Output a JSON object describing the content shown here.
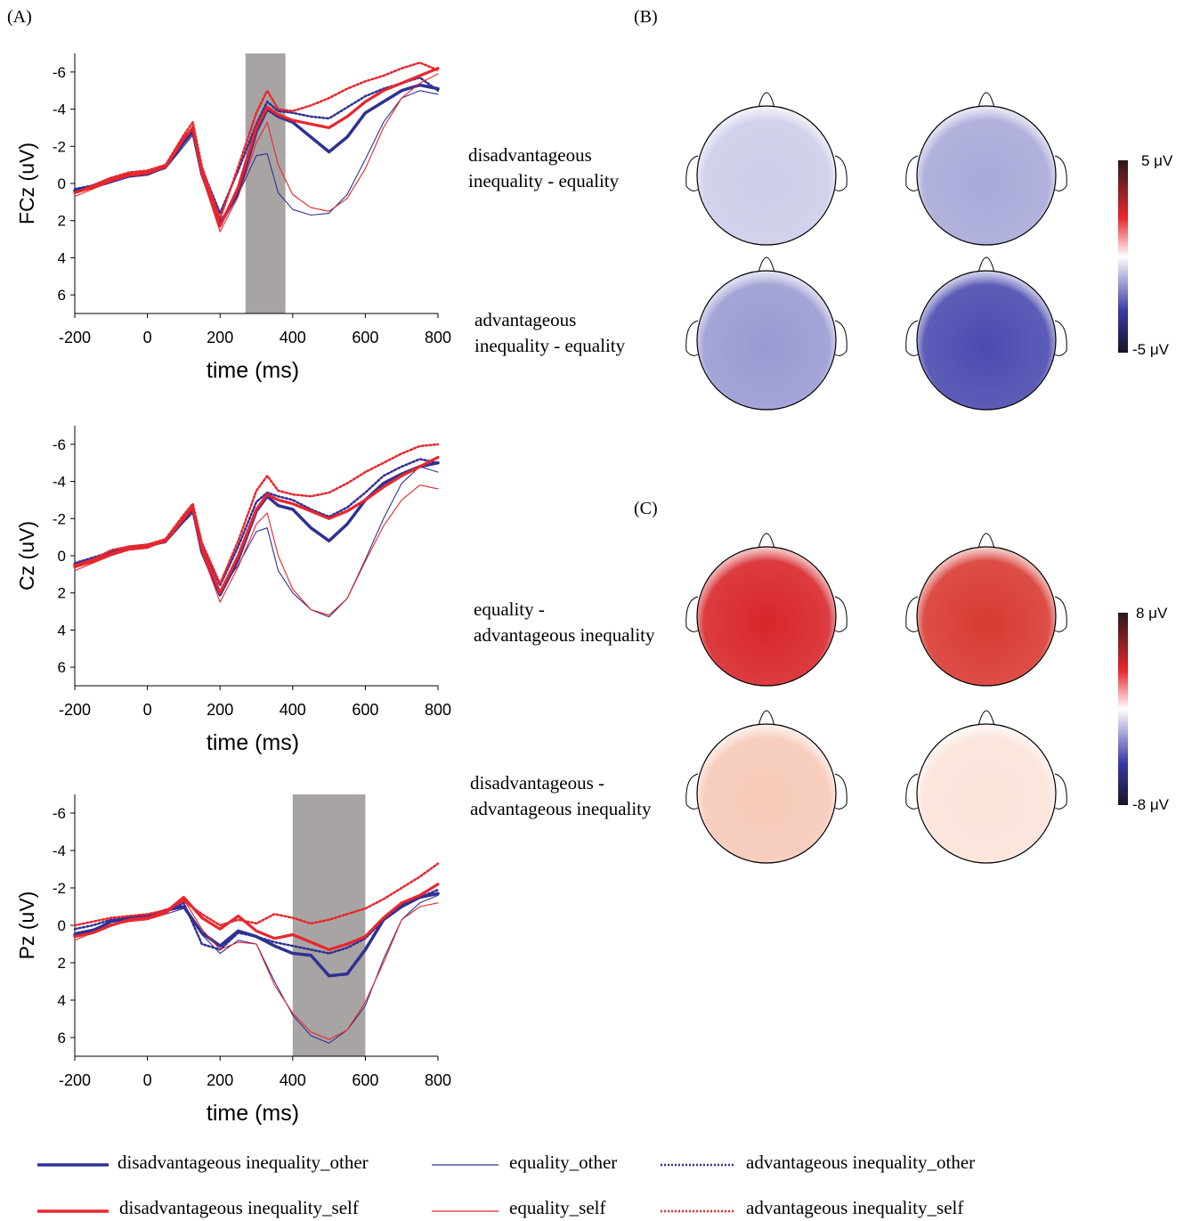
{
  "panel_labels": {
    "a": "(A)",
    "b": "(B)",
    "c": "(C)"
  },
  "legend": [
    {
      "label": "disadvantageous inequality_other",
      "color": "#2e3192",
      "style": "thick"
    },
    {
      "label": "equality_other",
      "color": "#2e3192",
      "style": "thin"
    },
    {
      "label": "advantageous inequality_other",
      "color": "#2e3192",
      "style": "dotted"
    },
    {
      "label": "disadvantageous inequality_self",
      "color": "#e8262d",
      "style": "thick"
    },
    {
      "label": "equality_self",
      "color": "#e8262d",
      "style": "thin"
    },
    {
      "label": "advantageous inequality_self",
      "color": "#e8262d",
      "style": "dotted"
    }
  ],
  "topo_b": {
    "rows": [
      {
        "label_line1": "disadvantageous",
        "label_line2": "inequality - equality",
        "maps": [
          "#cdcdea",
          "#a9a9d9"
        ]
      },
      {
        "label_line1": "advantageous",
        "label_line2": "inequality - equality",
        "maps": [
          "#9a9ad3",
          "#4b4bb0"
        ]
      }
    ],
    "colorbar_max": "5 μV",
    "colorbar_min": "-5 μV"
  },
  "topo_c": {
    "rows": [
      {
        "label_line1": "equality -",
        "label_line2": "advantageous inequality",
        "maps": [
          "#d8262a",
          "#d83a32"
        ]
      },
      {
        "label_line1": "disadvantageous -",
        "label_line2": "advantageous inequality",
        "maps": [
          "#f6c9b8",
          "#fbe3d9"
        ]
      }
    ],
    "colorbar_max": "8 μV",
    "colorbar_min": "-8 μV"
  },
  "chart_data": [
    {
      "type": "line",
      "ylabel": "FCz (uV)",
      "xlabel": "time (ms)",
      "xlim": [
        -200,
        800
      ],
      "ylim": [
        7,
        -7
      ],
      "xticks": [
        -200,
        0,
        200,
        400,
        600,
        800
      ],
      "yticks": [
        -6,
        -4,
        -2,
        0,
        2,
        4,
        6
      ],
      "shaded_window": [
        270,
        380
      ],
      "x": [
        -200,
        -150,
        -100,
        -50,
        0,
        50,
        100,
        125,
        150,
        200,
        250,
        300,
        330,
        360,
        400,
        450,
        500,
        550,
        600,
        650,
        700,
        750,
        800
      ],
      "series": [
        {
          "values": [
            0.4,
            0.2,
            -0.1,
            -0.4,
            -0.5,
            -0.9,
            -2.2,
            -2.8,
            -0.5,
            2.2,
            0.5,
            -2.8,
            -4.0,
            -3.6,
            -3.3,
            -2.5,
            -1.7,
            -2.5,
            -3.8,
            -4.4,
            -5.0,
            -5.3,
            -5.1
          ]
        },
        {
          "values": [
            0.3,
            0.1,
            -0.2,
            -0.4,
            -0.5,
            -0.8,
            -2.0,
            -2.6,
            -0.4,
            2.0,
            0.6,
            -1.5,
            -1.6,
            0.5,
            1.4,
            1.7,
            1.6,
            0.6,
            -1.3,
            -3.3,
            -4.6,
            -5.0,
            -4.8
          ]
        },
        {
          "values": [
            0.3,
            0.1,
            -0.3,
            -0.5,
            -0.6,
            -0.9,
            -2.3,
            -2.9,
            -0.8,
            1.6,
            -0.7,
            -3.2,
            -4.4,
            -3.9,
            -3.8,
            -3.6,
            -3.5,
            -4.1,
            -4.7,
            -5.1,
            -5.4,
            -5.7,
            -5.0
          ]
        },
        {
          "values": [
            0.5,
            0.2,
            -0.2,
            -0.5,
            -0.6,
            -0.9,
            -2.4,
            -3.0,
            -0.6,
            2.3,
            0.2,
            -3.0,
            -4.1,
            -3.7,
            -3.4,
            -3.2,
            -3.0,
            -3.6,
            -4.4,
            -5.0,
            -5.4,
            -5.8,
            -6.2
          ]
        },
        {
          "values": [
            0.7,
            0.3,
            -0.1,
            -0.4,
            -0.5,
            -0.9,
            -2.4,
            -3.1,
            -0.4,
            2.6,
            0.7,
            -2.2,
            -3.3,
            -1.0,
            0.6,
            1.3,
            1.5,
            0.8,
            -0.8,
            -3.0,
            -4.6,
            -5.4,
            -5.9
          ]
        },
        {
          "values": [
            0.5,
            0.1,
            -0.3,
            -0.6,
            -0.7,
            -1.0,
            -2.6,
            -3.3,
            -0.9,
            1.9,
            -0.9,
            -3.8,
            -5.0,
            -4.0,
            -3.9,
            -4.2,
            -4.6,
            -5.1,
            -5.5,
            -5.8,
            -6.2,
            -6.5,
            -6.1
          ]
        }
      ]
    },
    {
      "type": "line",
      "ylabel": "Cz (uV)",
      "xlabel": "time (ms)",
      "xlim": [
        -200,
        800
      ],
      "ylim": [
        7,
        -7
      ],
      "xticks": [
        -200,
        0,
        200,
        400,
        600,
        800
      ],
      "yticks": [
        -6,
        -4,
        -2,
        0,
        2,
        4,
        6
      ],
      "x": [
        -200,
        -150,
        -100,
        -50,
        0,
        50,
        100,
        125,
        150,
        200,
        250,
        300,
        330,
        360,
        400,
        450,
        500,
        550,
        600,
        650,
        700,
        750,
        800
      ],
      "series": [
        {
          "values": [
            0.5,
            0.3,
            -0.1,
            -0.4,
            -0.5,
            -0.8,
            -1.9,
            -2.5,
            -0.2,
            2.1,
            0.2,
            -2.4,
            -3.2,
            -2.7,
            -2.5,
            -1.5,
            -0.8,
            -1.7,
            -3.0,
            -3.9,
            -4.4,
            -4.8,
            -5.0
          ]
        },
        {
          "values": [
            0.4,
            0.2,
            -0.2,
            -0.4,
            -0.5,
            -0.7,
            -1.8,
            -2.3,
            -0.1,
            1.9,
            0.5,
            -1.3,
            -1.5,
            0.8,
            2.0,
            2.9,
            3.3,
            2.3,
            0.2,
            -2.0,
            -3.9,
            -4.8,
            -4.5
          ]
        },
        {
          "values": [
            0.4,
            0.1,
            -0.2,
            -0.5,
            -0.6,
            -0.8,
            -2.1,
            -2.6,
            -0.6,
            1.6,
            -0.5,
            -2.9,
            -3.4,
            -3.2,
            -3.0,
            -2.5,
            -2.1,
            -2.6,
            -3.4,
            -4.3,
            -4.8,
            -5.2,
            -5.0
          ]
        },
        {
          "values": [
            0.6,
            0.3,
            -0.1,
            -0.4,
            -0.5,
            -0.8,
            -2.0,
            -2.6,
            -0.4,
            2.0,
            0.0,
            -2.5,
            -3.3,
            -3.0,
            -2.8,
            -2.4,
            -2.0,
            -2.4,
            -3.0,
            -3.7,
            -4.3,
            -4.8,
            -5.3
          ]
        },
        {
          "values": [
            0.8,
            0.4,
            0.0,
            -0.3,
            -0.4,
            -0.8,
            -2.0,
            -2.7,
            -0.2,
            2.5,
            0.6,
            -1.7,
            -2.3,
            0.0,
            1.8,
            2.9,
            3.2,
            2.3,
            0.3,
            -1.6,
            -3.0,
            -3.8,
            -3.6
          ]
        },
        {
          "values": [
            0.5,
            0.2,
            -0.3,
            -0.5,
            -0.6,
            -0.9,
            -2.2,
            -2.8,
            -0.7,
            1.5,
            -0.8,
            -3.5,
            -4.3,
            -3.5,
            -3.3,
            -3.2,
            -3.4,
            -3.9,
            -4.5,
            -5.0,
            -5.5,
            -5.9,
            -6.0
          ]
        }
      ]
    },
    {
      "type": "line",
      "ylabel": "Pz (uV)",
      "xlabel": "time (ms)",
      "xlim": [
        -200,
        800
      ],
      "ylim": [
        7,
        -7
      ],
      "xticks": [
        -200,
        0,
        200,
        400,
        600,
        800
      ],
      "yticks": [
        -6,
        -4,
        -2,
        0,
        2,
        4,
        6
      ],
      "shaded_window": [
        400,
        600
      ],
      "x": [
        -200,
        -150,
        -100,
        -50,
        0,
        50,
        100,
        150,
        200,
        250,
        300,
        350,
        400,
        450,
        500,
        550,
        600,
        650,
        700,
        750,
        800
      ],
      "series": [
        {
          "values": [
            0.5,
            0.3,
            -0.2,
            -0.4,
            -0.5,
            -0.8,
            -1.0,
            0.4,
            1.1,
            0.3,
            0.6,
            1.1,
            1.5,
            1.6,
            2.7,
            2.6,
            1.3,
            -0.3,
            -1.0,
            -1.5,
            -1.7
          ]
        },
        {
          "values": [
            0.4,
            0.2,
            -0.2,
            -0.3,
            -0.4,
            -0.6,
            -0.9,
            0.5,
            1.5,
            0.8,
            1.0,
            3.0,
            4.8,
            5.9,
            6.3,
            5.6,
            4.3,
            1.8,
            -0.3,
            -1.2,
            -1.6
          ]
        },
        {
          "values": [
            0.2,
            0.0,
            -0.3,
            -0.4,
            -0.5,
            -0.7,
            -1.2,
            1.0,
            1.3,
            0.4,
            0.6,
            0.9,
            1.1,
            1.3,
            1.5,
            1.2,
            0.7,
            -0.3,
            -1.1,
            -1.5,
            -1.9
          ]
        },
        {
          "values": [
            0.6,
            0.4,
            0.0,
            -0.3,
            -0.4,
            -0.7,
            -1.5,
            -0.4,
            0.2,
            -0.5,
            0.3,
            0.7,
            0.5,
            0.9,
            1.3,
            1.0,
            0.6,
            -0.4,
            -1.2,
            -1.6,
            -2.2
          ]
        },
        {
          "values": [
            0.8,
            0.4,
            0.0,
            -0.2,
            -0.3,
            -0.6,
            -1.4,
            0.2,
            1.3,
            0.9,
            1.0,
            3.2,
            4.7,
            5.7,
            6.1,
            5.6,
            4.1,
            2.0,
            -0.3,
            -1.0,
            -1.2
          ]
        },
        {
          "values": [
            0.0,
            -0.2,
            -0.4,
            -0.5,
            -0.6,
            -0.8,
            -1.3,
            -0.6,
            0.0,
            -0.3,
            -0.1,
            -0.6,
            -0.4,
            -0.1,
            -0.3,
            -0.6,
            -0.9,
            -1.4,
            -2.0,
            -2.6,
            -3.3
          ]
        }
      ]
    }
  ]
}
